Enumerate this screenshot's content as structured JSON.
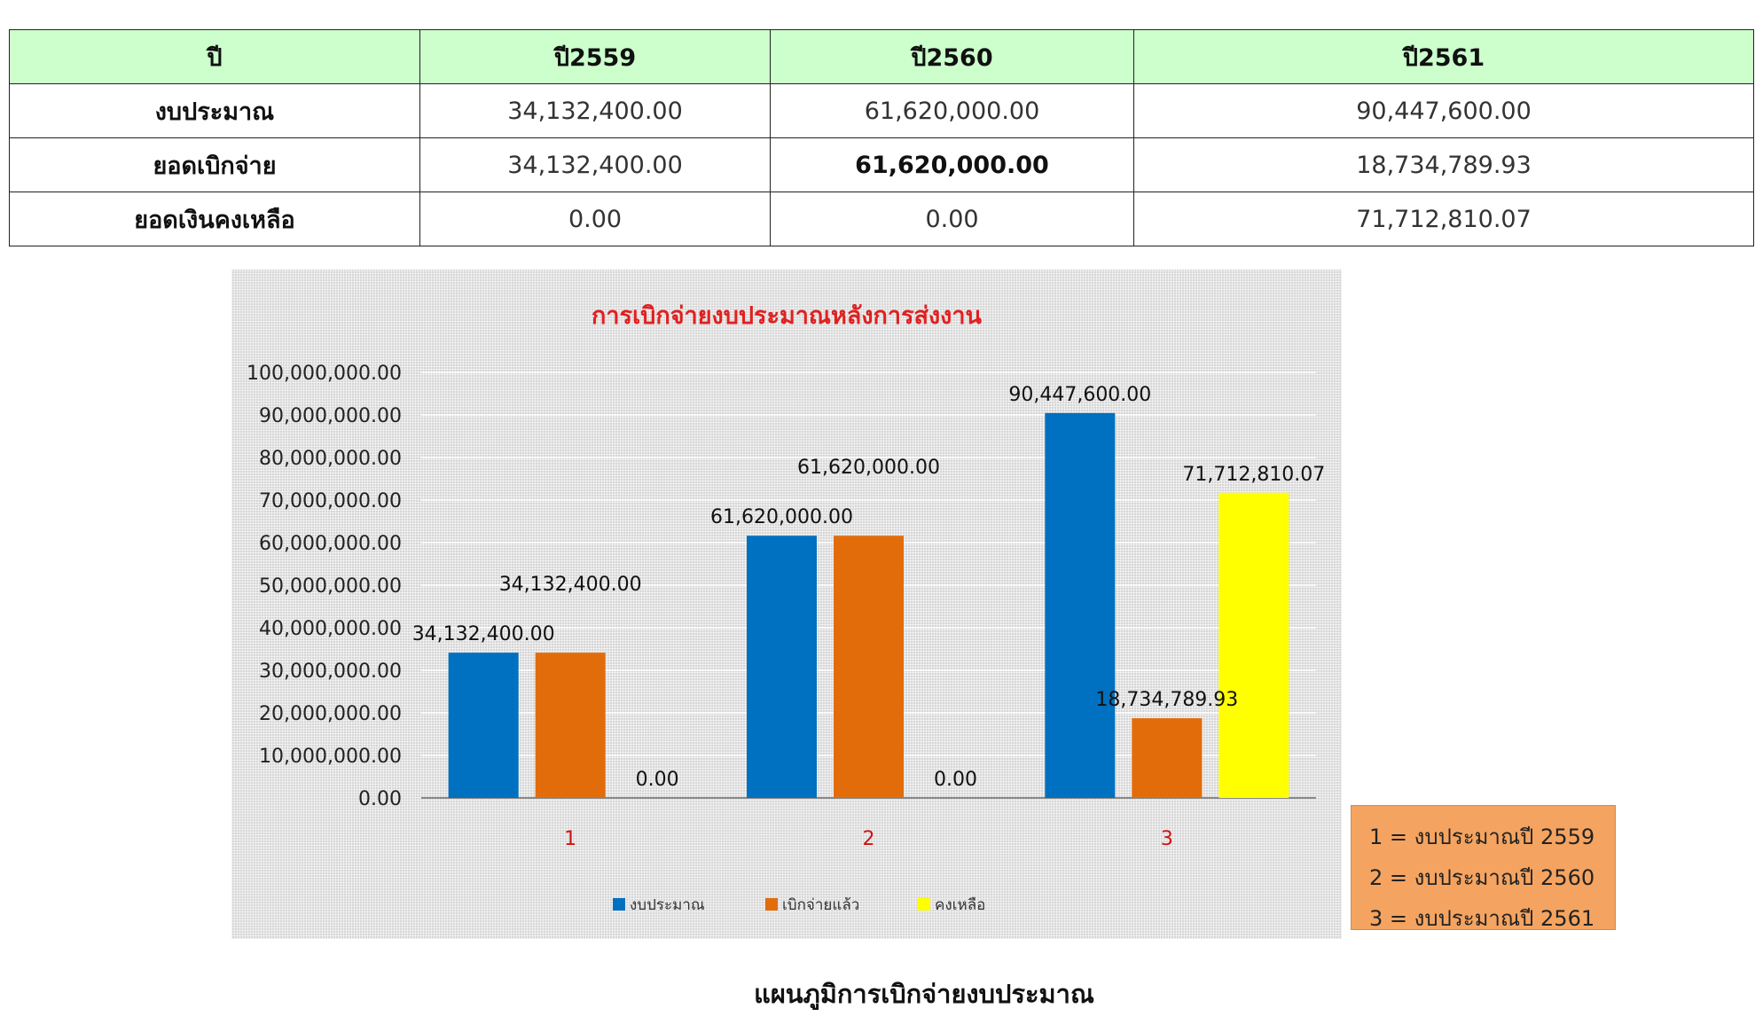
{
  "table": {
    "headers": [
      "ปี",
      "ปี2559",
      "ปี2560",
      "ปี2561"
    ],
    "rows": [
      {
        "label": "งบประมาณ",
        "values": [
          "34,132,400.00",
          "61,620,000.00",
          "90,447,600.00"
        ]
      },
      {
        "label": "ยอดเบิกจ่าย",
        "values": [
          "34,132,400.00",
          "61,620,000.00",
          "18,734,789.93"
        ]
      },
      {
        "label": "ยอดเงินคงเหลือ",
        "values": [
          "0.00",
          "0.00",
          "71,712,810.07"
        ]
      }
    ]
  },
  "chart_data": {
    "type": "bar",
    "title": "การเบิกจ่ายงบประมาณหลังการส่งงาน",
    "categories": [
      "1",
      "2",
      "3"
    ],
    "series": [
      {
        "name": "งบประมาณ",
        "color": "#0070c0",
        "values": [
          34132400,
          61620000,
          90447600
        ],
        "labels": [
          "34,132,400.00",
          "61,620,000.00",
          "90,447,600.00"
        ]
      },
      {
        "name": "เบิกจ่ายแล้ว",
        "color": "#e36c0a",
        "values": [
          34132400,
          61620000,
          18734789.93
        ],
        "labels": [
          "34,132,400.00",
          "61,620,000.00",
          "18,734,789.93"
        ]
      },
      {
        "name": "คงเหลือ",
        "color": "#ffff00",
        "values": [
          0,
          0,
          71712810.07
        ],
        "labels": [
          "0.00",
          "0.00",
          "71,712,810.07"
        ]
      }
    ],
    "ylim": [
      0,
      100000000
    ],
    "yticks": [
      "0.00",
      "10,000,000.00",
      "20,000,000.00",
      "30,000,000.00",
      "40,000,000.00",
      "50,000,000.00",
      "60,000,000.00",
      "70,000,000.00",
      "80,000,000.00",
      "90,000,000.00",
      "100,000,000.00"
    ],
    "legend_position": "bottom",
    "grid": true
  },
  "key": [
    "1 = งบประมาณปี 2559",
    "2 = งบประมาณปี 2560",
    "3 = งบประมาณปี 2561"
  ],
  "caption": "แผนภูมิการเบิกจ่ายงบประมาณ"
}
